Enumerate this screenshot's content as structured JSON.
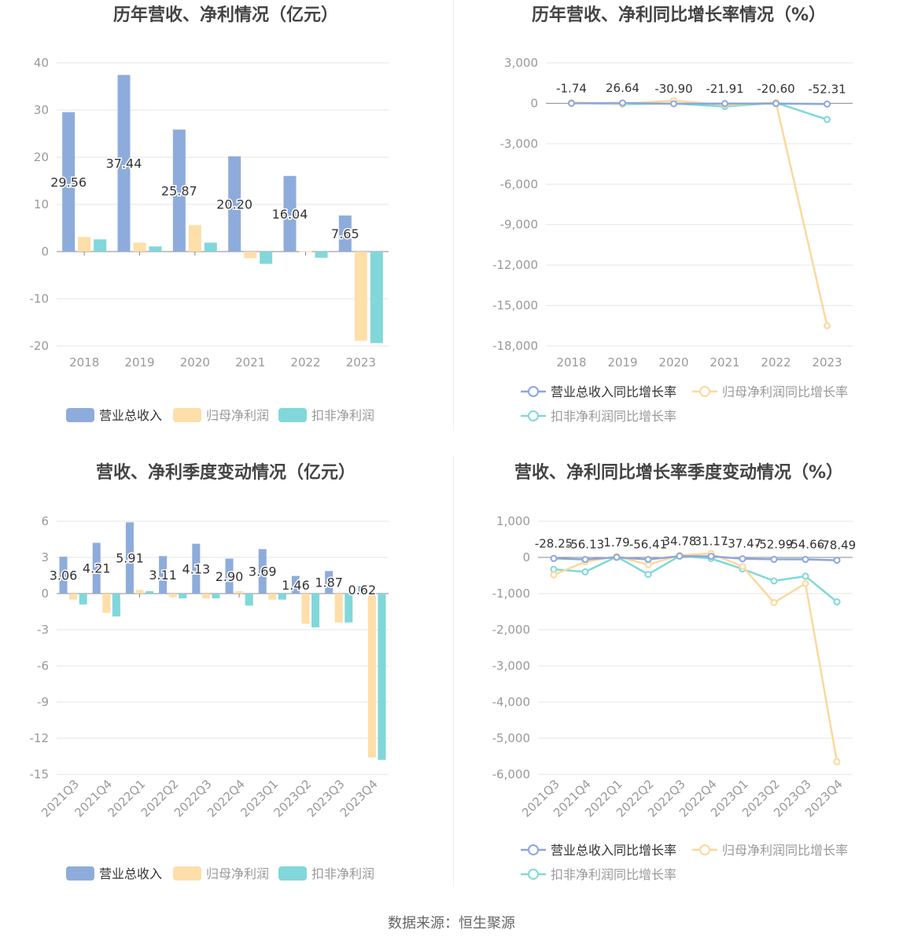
{
  "source_text": "数据来源：恒生聚源",
  "colors": {
    "revenue": "#8eacdb",
    "net_profit": "#fedea9",
    "deducted_profit": "#81d7d9",
    "revenue_line": "#8ca7db",
    "net_line": "#fcd89c",
    "deducted_line": "#80d8d8",
    "grid": "#e6e6e6",
    "axis_text": "#999999",
    "title": "#444444"
  },
  "chart_data": [
    {
      "id": "annual-bars",
      "type": "bar",
      "title": "历年营收、净利情况（亿元）",
      "categories": [
        "2018",
        "2019",
        "2020",
        "2021",
        "2022",
        "2023"
      ],
      "ylim": [
        -20,
        40
      ],
      "yticks": [
        40,
        30,
        20,
        10,
        0,
        -10,
        -20
      ],
      "ytick_labels": [
        "40",
        "30",
        "20",
        "10",
        "0",
        "-10",
        "-20"
      ],
      "grid": true,
      "legend_position": "bottom",
      "label_series": 0,
      "series": [
        {
          "name": "营业总收入",
          "values": [
            29.56,
            37.44,
            25.87,
            20.2,
            16.04,
            7.65
          ],
          "labels": [
            "29.56",
            "37.44",
            "25.87",
            "20.20",
            "16.04",
            "7.65"
          ]
        },
        {
          "name": "归母净利润",
          "values": [
            3.1,
            1.9,
            5.6,
            -1.4,
            0.1,
            -18.9
          ]
        },
        {
          "name": "扣非净利润",
          "values": [
            2.6,
            1.1,
            1.9,
            -2.6,
            -1.3,
            -19.4
          ]
        }
      ]
    },
    {
      "id": "annual-growth",
      "type": "line",
      "title": "历年营收、净利同比增长率情况（%）",
      "categories": [
        "2018",
        "2019",
        "2020",
        "2021",
        "2022",
        "2023"
      ],
      "ylim": [
        -18000,
        3000
      ],
      "yticks": [
        3000,
        0,
        -3000,
        -6000,
        -9000,
        -12000,
        -15000,
        -18000
      ],
      "ytick_labels": [
        "3,000",
        "0",
        "-3,000",
        "-6,000",
        "-9,000",
        "-12,000",
        "-15,000",
        "-18,000"
      ],
      "grid": true,
      "legend_position": "bottom",
      "label_series": 0,
      "series": [
        {
          "name": "营业总收入同比增长率",
          "values": [
            -1.74,
            26.64,
            -30.9,
            -21.91,
            -20.6,
            -52.31
          ],
          "labels": [
            "-1.74",
            "26.64",
            "-30.90",
            "-21.91",
            "-20.60",
            "-52.31"
          ]
        },
        {
          "name": "归母净利润同比增长率",
          "values": [
            60,
            -40,
            200,
            -120,
            60,
            -16500
          ]
        },
        {
          "name": "扣非净利润同比增长率",
          "values": [
            30,
            -60,
            -10,
            -240,
            40,
            -1200
          ]
        }
      ]
    },
    {
      "id": "quarterly-bars",
      "type": "bar",
      "title": "营收、净利季度变动情况（亿元）",
      "categories": [
        "2021Q3",
        "2021Q4",
        "2022Q1",
        "2022Q2",
        "2022Q3",
        "2022Q4",
        "2023Q1",
        "2023Q2",
        "2023Q3",
        "2023Q4"
      ],
      "ylim": [
        -15,
        6
      ],
      "yticks": [
        6,
        3,
        0,
        -3,
        -6,
        -9,
        -12,
        -15
      ],
      "ytick_labels": [
        "6",
        "3",
        "0",
        "-3",
        "-6",
        "-9",
        "-12",
        "-15"
      ],
      "grid": true,
      "legend_position": "bottom",
      "label_series": 0,
      "series": [
        {
          "name": "营业总收入",
          "values": [
            3.06,
            4.21,
            5.91,
            3.11,
            4.13,
            2.9,
            3.69,
            1.46,
            1.87,
            0.62
          ],
          "labels": [
            "3.06",
            "4.21",
            "5.91",
            "3.11",
            "4.13",
            "2.90",
            "3.69",
            "1.46",
            "1.87",
            "0.62"
          ]
        },
        {
          "name": "归母净利润",
          "values": [
            -0.5,
            -1.6,
            0.3,
            -0.3,
            -0.4,
            0.2,
            -0.5,
            -2.5,
            -2.4,
            -13.6
          ]
        },
        {
          "name": "扣非净利润",
          "values": [
            -0.9,
            -1.9,
            0.2,
            -0.4,
            -0.4,
            -1.0,
            -0.5,
            -2.8,
            -2.4,
            -13.8
          ]
        }
      ]
    },
    {
      "id": "quarterly-growth",
      "type": "line",
      "title": "营收、净利同比增长率季度变动情况（%）",
      "categories": [
        "2021Q3",
        "2021Q4",
        "2022Q1",
        "2022Q2",
        "2022Q3",
        "2022Q4",
        "2023Q1",
        "2023Q2",
        "2023Q3",
        "2023Q4"
      ],
      "ylim": [
        -6000,
        1000
      ],
      "yticks": [
        1000,
        0,
        -1000,
        -2000,
        -3000,
        -4000,
        -5000,
        -6000
      ],
      "ytick_labels": [
        "1,000",
        "0",
        "-1,000",
        "-2,000",
        "-3,000",
        "-4,000",
        "-5,000",
        "-6,000"
      ],
      "grid": true,
      "legend_position": "bottom",
      "label_series": 0,
      "series": [
        {
          "name": "营业总收入同比增长率",
          "values": [
            -28.25,
            -56.13,
            1.79,
            -56.41,
            34.78,
            31.17,
            -37.47,
            -52.99,
            -54.66,
            -78.49
          ],
          "labels": [
            "-28.25",
            "-56.13",
            "1.79",
            "-56.41",
            "34.78",
            "31.17",
            "-37.47",
            "-52.99",
            "-54.66",
            "-78.49"
          ]
        },
        {
          "name": "归母净利润同比增长率",
          "values": [
            -480,
            -120,
            30,
            -200,
            60,
            110,
            -250,
            -1250,
            -720,
            -5650
          ]
        },
        {
          "name": "扣非净利润同比增长率",
          "values": [
            -330,
            -400,
            20,
            -470,
            40,
            -30,
            -320,
            -650,
            -520,
            -1230
          ]
        }
      ]
    }
  ]
}
